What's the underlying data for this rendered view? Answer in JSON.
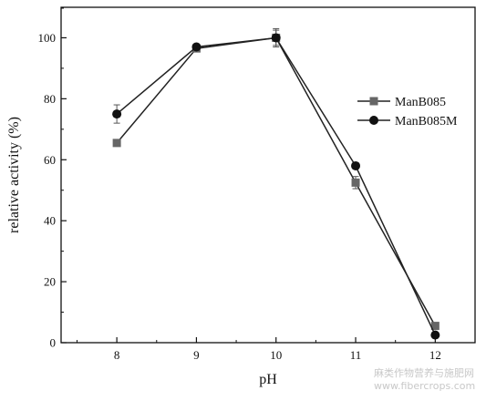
{
  "chart_data": {
    "type": "line",
    "title": "",
    "xlabel": "pH",
    "ylabel": "relative activity (%)",
    "x": [
      8,
      9,
      10,
      11,
      12
    ],
    "xticks": [
      "8",
      "9",
      "10",
      "11",
      "12"
    ],
    "xlim": [
      7.3,
      12.5
    ],
    "ylim": [
      0,
      110
    ],
    "yticks": [
      "0",
      "20",
      "40",
      "60",
      "80",
      "100"
    ],
    "grid": false,
    "legend_position": "right",
    "series": [
      {
        "name": "ManB085",
        "marker": "square",
        "color": "#666666",
        "values": [
          65.5,
          96.5,
          100,
          52.5,
          5.5
        ],
        "errors": [
          0,
          1.0,
          2.5,
          2.0,
          0.5
        ]
      },
      {
        "name": "ManB085M",
        "marker": "circle",
        "color": "#111111",
        "values": [
          75,
          97,
          100,
          58,
          2.5
        ],
        "errors": [
          3,
          1.0,
          3.0,
          1.0,
          0.5
        ]
      }
    ]
  },
  "watermark": {
    "text": "麻类作物营养与施肥网\nwww.fibercrops.com"
  }
}
